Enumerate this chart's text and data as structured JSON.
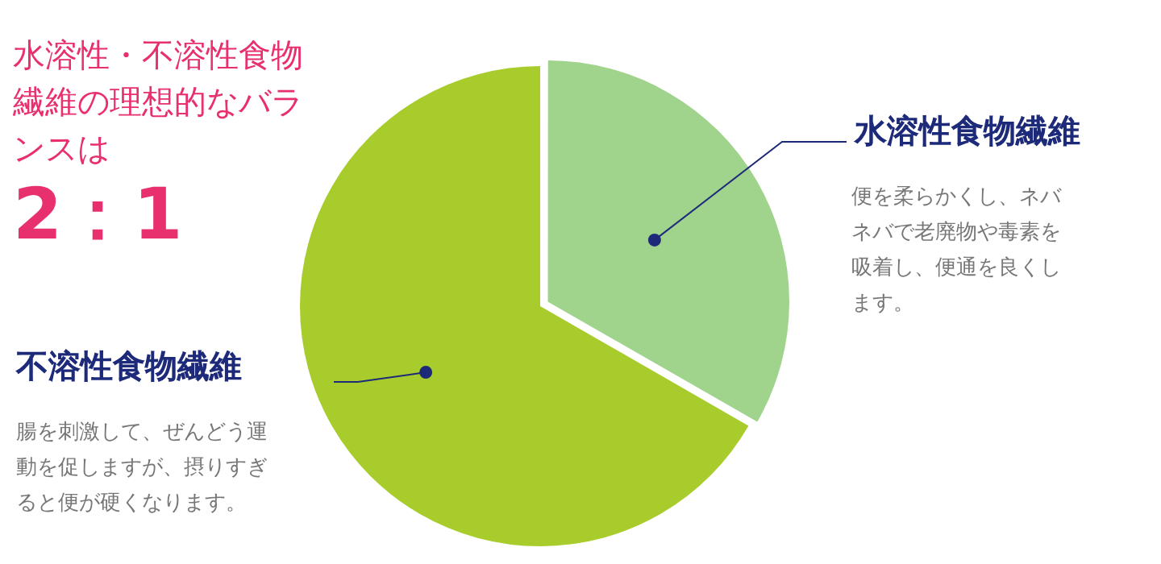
{
  "chart_data": {
    "type": "pie",
    "title": "水溶性・不溶性食物繊維の理想的なバランスは",
    "subtitle": "2：1",
    "categories": [
      "水溶性食物繊維",
      "不溶性食物繊維"
    ],
    "values": [
      33.3,
      66.7
    ],
    "colors": [
      "#a0d38c",
      "#a8cc2c"
    ],
    "annotations": [
      "便を柔らかくし、ネバネバで老廃物や毒素を吸着し、便通を良くします。",
      "腸を刺激して、ぜんどう運動を促しますが、摂りすぎると便が硬くなります。"
    ],
    "legend": false
  }
}
